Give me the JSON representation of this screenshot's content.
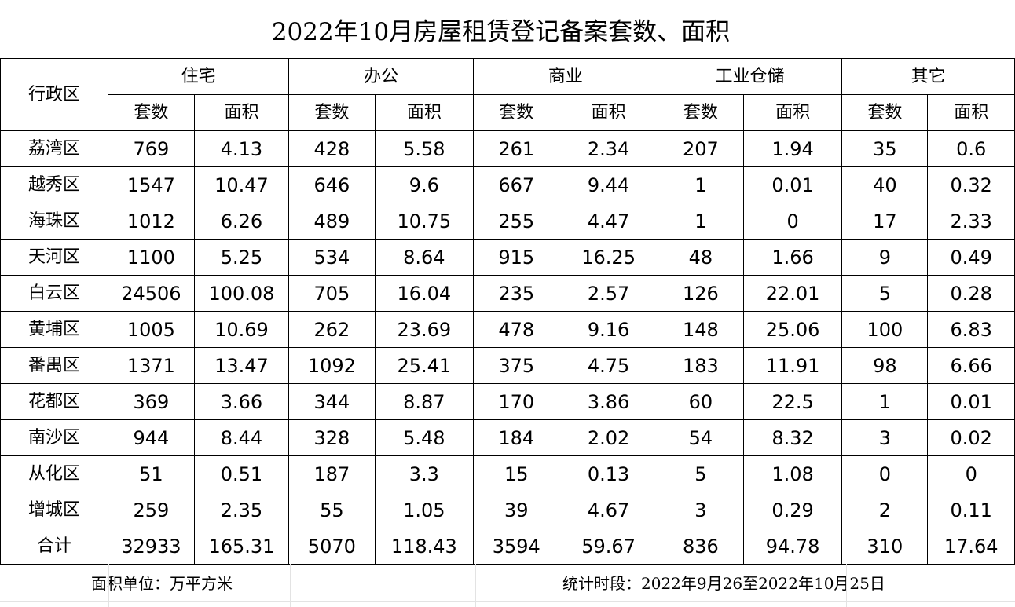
{
  "title": "2022年10月房屋租赁登记备案套数、面积",
  "header": {
    "district": "行政区",
    "categories": [
      "住宅",
      "办公",
      "商业",
      "工业仓储",
      "其它"
    ],
    "sub": {
      "count": "套数",
      "area": "面积"
    }
  },
  "rows": [
    {
      "district": "荔湾区",
      "values": [
        "769",
        "4.13",
        "428",
        "5.58",
        "261",
        "2.34",
        "207",
        "1.94",
        "35",
        "0.6"
      ]
    },
    {
      "district": "越秀区",
      "values": [
        "1547",
        "10.47",
        "646",
        "9.6",
        "667",
        "9.44",
        "1",
        "0.01",
        "40",
        "0.32"
      ]
    },
    {
      "district": "海珠区",
      "values": [
        "1012",
        "6.26",
        "489",
        "10.75",
        "255",
        "4.47",
        "1",
        "0",
        "17",
        "2.33"
      ]
    },
    {
      "district": "天河区",
      "values": [
        "1100",
        "5.25",
        "534",
        "8.64",
        "915",
        "16.25",
        "48",
        "1.66",
        "9",
        "0.49"
      ]
    },
    {
      "district": "白云区",
      "values": [
        "24506",
        "100.08",
        "705",
        "16.04",
        "235",
        "2.57",
        "126",
        "22.01",
        "5",
        "0.28"
      ]
    },
    {
      "district": "黄埔区",
      "values": [
        "1005",
        "10.69",
        "262",
        "23.69",
        "478",
        "9.16",
        "148",
        "25.06",
        "100",
        "6.83"
      ]
    },
    {
      "district": "番禺区",
      "values": [
        "1371",
        "13.47",
        "1092",
        "25.41",
        "375",
        "4.75",
        "183",
        "11.91",
        "98",
        "6.66"
      ]
    },
    {
      "district": "花都区",
      "values": [
        "369",
        "3.66",
        "344",
        "8.87",
        "170",
        "3.86",
        "60",
        "22.5",
        "1",
        "0.01"
      ]
    },
    {
      "district": "南沙区",
      "values": [
        "944",
        "8.44",
        "328",
        "5.48",
        "184",
        "2.02",
        "54",
        "8.32",
        "3",
        "0.02"
      ]
    },
    {
      "district": "从化区",
      "values": [
        "51",
        "0.51",
        "187",
        "3.3",
        "15",
        "0.13",
        "5",
        "1.08",
        "0",
        "0"
      ]
    },
    {
      "district": "增城区",
      "values": [
        "259",
        "2.35",
        "55",
        "1.05",
        "39",
        "4.67",
        "3",
        "0.29",
        "2",
        "0.11"
      ]
    },
    {
      "district": "合计",
      "values": [
        "32933",
        "165.31",
        "5070",
        "118.43",
        "3594",
        "59.67",
        "836",
        "94.78",
        "310",
        "17.64"
      ]
    }
  ],
  "footer": {
    "unit": "面积单位：万平方米",
    "period": "统计时段：2022年9月26至2022年10月25日"
  }
}
